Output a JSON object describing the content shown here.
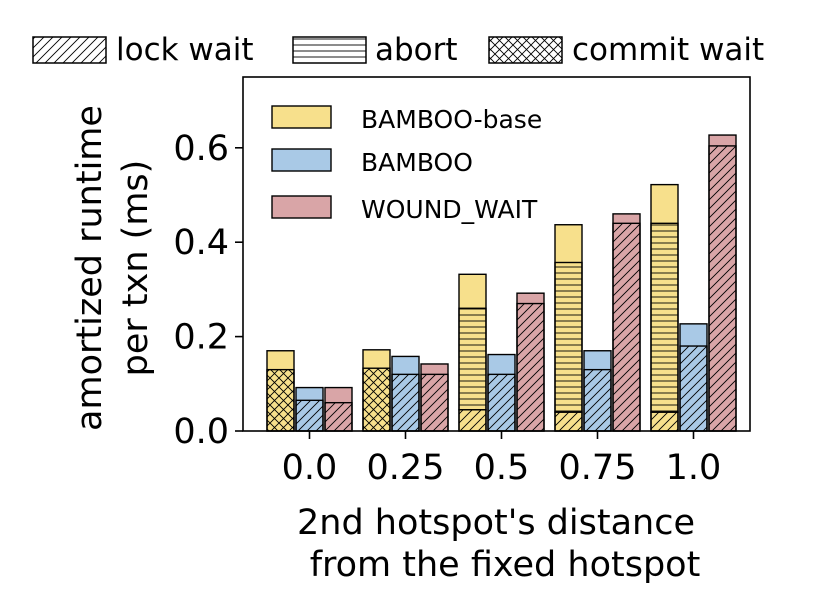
{
  "chart_data": {
    "type": "bar",
    "stacked": true,
    "categories": [
      "0.0",
      "0.25",
      "0.5",
      "0.75",
      "1.0"
    ],
    "xlabel": [
      "2nd hotspot's distance",
      "from the fixed hotspot"
    ],
    "ylabel": [
      "amortized runtime",
      "per txn (ms)"
    ],
    "ylim": [
      0,
      0.75
    ],
    "yticks": [
      "0.0",
      "0.2",
      "0.4",
      "0.6"
    ],
    "ytick_values": [
      0,
      0.2,
      0.4,
      0.6
    ],
    "grid": false,
    "series": [
      {
        "name": "BAMBOO-base",
        "color": "#f7e08c",
        "totals": [
          0.17,
          0.172,
          0.332,
          0.437,
          0.522
        ],
        "components": {
          "lock wait": [
            0.0,
            0.0,
            0.045,
            0.04,
            0.04
          ],
          "commit wait": [
            0.13,
            0.133,
            0.0,
            0.0,
            0.0
          ],
          "abort": [
            0.0,
            0.0,
            0.215,
            0.317,
            0.4
          ]
        }
      },
      {
        "name": "BAMBOO",
        "color": "#a9c9e6",
        "totals": [
          0.092,
          0.158,
          0.162,
          0.17,
          0.227
        ],
        "components": {
          "lock wait": [
            0.065,
            0.12,
            0.12,
            0.13,
            0.18
          ],
          "commit wait": [
            0.0,
            0.0,
            0.0,
            0.0,
            0.0
          ],
          "abort": [
            0.0,
            0.0,
            0.0,
            0.0,
            0.0
          ]
        }
      },
      {
        "name": "WOUND_WAIT",
        "color": "#d9a5a7",
        "totals": [
          0.092,
          0.142,
          0.292,
          0.46,
          0.627
        ],
        "components": {
          "lock wait": [
            0.06,
            0.12,
            0.27,
            0.44,
            0.604
          ],
          "commit wait": [
            0.0,
            0.0,
            0.0,
            0.0,
            0.0
          ],
          "abort": [
            0.0,
            0.0,
            0.0,
            0.0,
            0.0
          ]
        }
      }
    ],
    "hatch_legend": [
      {
        "label": "lock wait",
        "hatch": "diagonal"
      },
      {
        "label": "abort",
        "hatch": "horizontal"
      },
      {
        "label": "commit wait",
        "hatch": "crosshatch"
      }
    ],
    "legend_position": "upper-left"
  }
}
